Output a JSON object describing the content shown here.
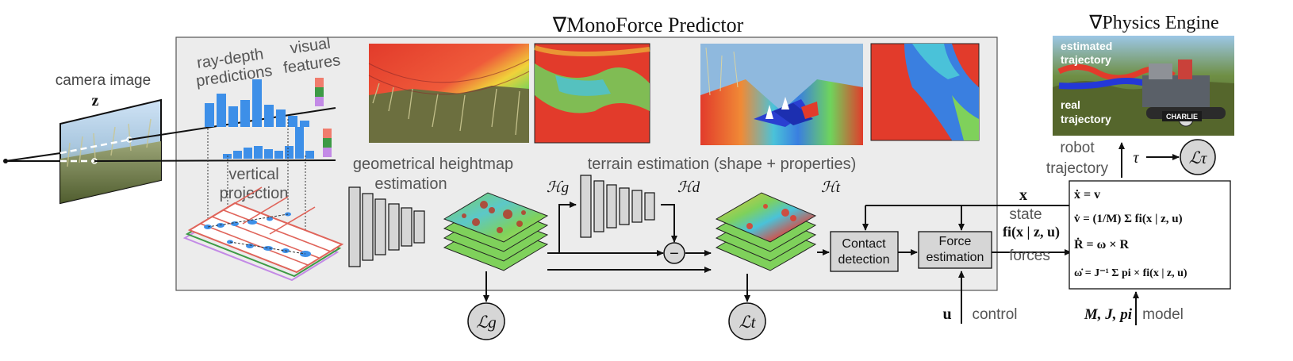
{
  "predictor_title": "∇MonoForce Predictor",
  "engine_title": "∇Physics Engine",
  "camera": {
    "label": "camera image",
    "symbol": "z"
  },
  "ray_depth_label": [
    "ray-depth",
    "predictions"
  ],
  "visual_features_label": [
    "visual",
    "features"
  ],
  "vertical_projection_label": [
    "vertical",
    "projection"
  ],
  "geometric_label": [
    "geometrical heightmap",
    "estimation"
  ],
  "terrain_label": "terrain estimation (shape + properties)",
  "heightmap_symbols": {
    "hg": "ℋg",
    "hd": "ℋd",
    "ht": "ℋt"
  },
  "minus_symbol": "−",
  "losses": {
    "lg": "ℒg",
    "lt": "ℒt",
    "ltau": "ℒτ"
  },
  "blocks": {
    "contact": [
      "Contact",
      "detection"
    ],
    "force": [
      "Force",
      "estimation"
    ]
  },
  "signals": {
    "x": "x",
    "state": "state",
    "forces_expr": "fi(x | z, u)",
    "forces": "forces",
    "u": "u",
    "control": "control",
    "tau": "τ",
    "robot_trajectory": [
      "robot",
      "trajectory"
    ],
    "model_params": "M, J, pi",
    "model": "model"
  },
  "photo_labels": {
    "estimated": [
      "estimated",
      "trajectory"
    ],
    "real": [
      "real",
      "trajectory"
    ],
    "robot_name": "CHARLIE"
  },
  "equations": [
    "ẋ = v",
    "v̇ = (1/M) Σ fi(x | z, u)",
    "Ṙ = ω × R",
    "ω̇ = J⁻¹ Σ pi × fi(x | z, u)"
  ],
  "colors": {
    "panel_bg": "#ececec",
    "block_fill": "#d6d6d6",
    "bar_blue": "#3d8fe8",
    "terrain_red": "#e23b2b",
    "terrain_green": "#7fd15b",
    "terrain_blue": "#3a7fe0",
    "feature_red": "#f07c6d",
    "feature_green": "#3d9a45",
    "feature_purple": "#c38ae6"
  }
}
